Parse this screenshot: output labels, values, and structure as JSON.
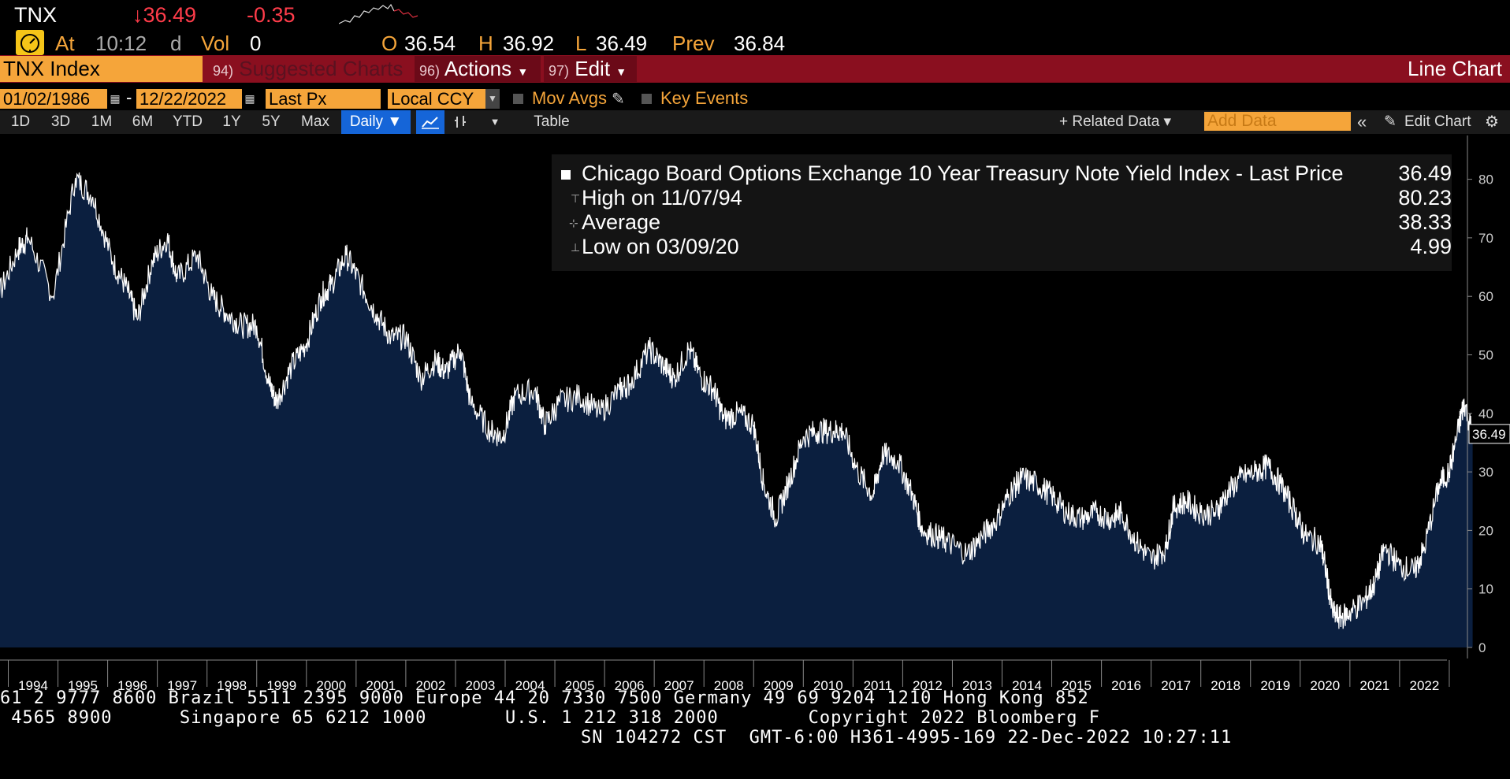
{
  "ticker": {
    "symbol": "TNX",
    "last": "↓36.49",
    "change": "-0.35",
    "at_label": "At",
    "time": "10:12",
    "time_suffix": "d",
    "vol_label": "Vol",
    "vol": "0",
    "open_label": "O",
    "open": "36.54",
    "high_label": "H",
    "high": "36.92",
    "low_label": "L",
    "low": "36.49",
    "prev_label": "Prev",
    "prev": "36.84"
  },
  "toolbar": {
    "index": "TNX Index",
    "suggested_num": "94)",
    "suggested": "Suggested Charts",
    "actions_num": "96)",
    "actions": "Actions",
    "edit_num": "97)",
    "edit": "Edit",
    "chart_type": "Line Chart"
  },
  "range": {
    "start": "01/02/1986",
    "separator": "-",
    "end": "12/22/2022",
    "field": "Last Px",
    "currency": "Local CCY",
    "mov_avgs": "Mov Avgs",
    "key_events": "Key Events"
  },
  "periods": [
    "1D",
    "3D",
    "1M",
    "6M",
    "YTD",
    "1Y",
    "5Y",
    "Max"
  ],
  "frequency": "Daily ▼",
  "table_label": "Table",
  "related_data": "+ Related Data ▾",
  "add_data_placeholder": "Add Data",
  "edit_chart": "Edit Chart",
  "colors": {
    "accent_orange": "#f5a53a",
    "bar_red": "#8a0f1f",
    "negative": "#ff3c4a",
    "fill": "#0b1f3f",
    "line": "#ffffff"
  },
  "legend": {
    "series_name": "Chicago Board Options Exchange 10 Year Treasury Note Yield Index - Last Price",
    "last_value": "36.49",
    "high_label": "High on 11/07/94",
    "high_value": "80.23",
    "average_label": "Average",
    "average_value": "38.33",
    "low_label": "Low on 03/09/20",
    "low_value": "4.99"
  },
  "chart_data": {
    "type": "area",
    "x_label": "",
    "y_label": "",
    "ylim": [
      0,
      85
    ],
    "y_ticks": [
      0,
      10,
      20,
      30,
      40,
      50,
      60,
      70,
      80
    ],
    "x_ticks": [
      "1994",
      "1995",
      "1996",
      "1997",
      "1998",
      "1999",
      "2000",
      "2001",
      "2002",
      "2003",
      "2004",
      "2005",
      "2006",
      "2007",
      "2008",
      "2009",
      "2010",
      "2011",
      "2012",
      "2013",
      "2014",
      "2015",
      "2016",
      "2017",
      "2018",
      "2019",
      "2020",
      "2021",
      "2022"
    ],
    "last_price_tag": "36.49",
    "grid": false,
    "series": [
      {
        "x": [
          1992.9,
          1993.3,
          1993.7,
          1993.9,
          1994.4,
          1994.85,
          1995.2,
          1995.6,
          1995.9,
          1996.1,
          1996.4,
          1996.7,
          1996.9,
          1997.3,
          1997.6,
          1997.9,
          1998.2,
          1998.5,
          1998.75,
          1998.9,
          1999.2,
          1999.5,
          1999.8,
          2000.0,
          2000.3,
          2000.6,
          2000.9,
          2001.2,
          2001.5,
          2001.8,
          2002.1,
          2002.3,
          2002.6,
          2002.8,
          2003.2,
          2003.45,
          2003.7,
          2004.1,
          2004.3,
          2004.6,
          2005.0,
          2005.4,
          2005.8,
          2006.0,
          2006.4,
          2006.7,
          2006.9,
          2007.2,
          2007.45,
          2007.7,
          2007.9,
          2008.2,
          2008.5,
          2008.7,
          2008.95,
          2009.2,
          2009.5,
          2009.8,
          2010.1,
          2010.3,
          2010.6,
          2010.9,
          2011.1,
          2011.4,
          2011.7,
          2011.9,
          2012.2,
          2012.4,
          2012.8,
          2013.1,
          2013.4,
          2013.7,
          2013.9,
          2014.2,
          2014.5,
          2014.8,
          2015.1,
          2015.4,
          2015.7,
          2015.9,
          2016.2,
          2016.5,
          2016.8,
          2016.95,
          2017.2,
          2017.5,
          2017.8,
          2018.0,
          2018.3,
          2018.6,
          2018.85,
          2019.1,
          2019.4,
          2019.6,
          2019.9,
          2020.0,
          2020.15,
          2020.3,
          2020.5,
          2020.8,
          2021.0,
          2021.2,
          2021.5,
          2021.8,
          2022.0,
          2022.3,
          2022.5,
          2022.7,
          2022.8,
          2022.97
        ],
        "y": [
          57,
          60,
          68,
          70,
          60,
          80.23,
          77,
          66,
          61,
          56,
          66,
          70,
          63,
          67,
          60,
          57,
          55,
          55,
          45,
          42,
          48,
          52,
          60,
          62,
          67,
          62,
          57,
          53,
          53,
          46,
          49,
          47,
          51,
          42,
          37,
          36,
          43,
          44,
          38,
          42,
          43,
          40,
          44,
          45,
          51,
          48,
          46,
          51,
          46,
          44,
          39,
          40,
          38,
          28,
          22,
          28,
          36,
          37,
          37,
          37,
          30,
          26,
          33,
          32,
          26,
          20,
          19,
          18,
          16,
          19,
          22,
          27,
          29,
          28,
          26,
          23,
          22,
          23,
          22,
          23,
          18,
          15,
          17,
          24,
          25,
          23,
          23,
          26,
          29,
          30,
          31,
          28,
          23,
          19,
          18,
          14,
          6,
          5,
          6,
          8,
          11,
          17,
          14,
          13,
          17,
          28,
          30,
          38,
          42,
          36.49
        ]
      }
    ]
  },
  "footer": {
    "line1": "61 2 9777 8600 Brazil 5511 2395 9000 Europe 44 20 7330 7500 Germany 49 69 9204 1210 Hong Kong 852",
    "line2": " 4565 8900      Singapore 65 6212 1000       U.S. 1 212 318 2000        Copyright 2022 Bloomberg F",
    "line3": "SN 104272 CST  GMT-6:00 H361-4995-169 22-Dec-2022 10:27:11"
  }
}
